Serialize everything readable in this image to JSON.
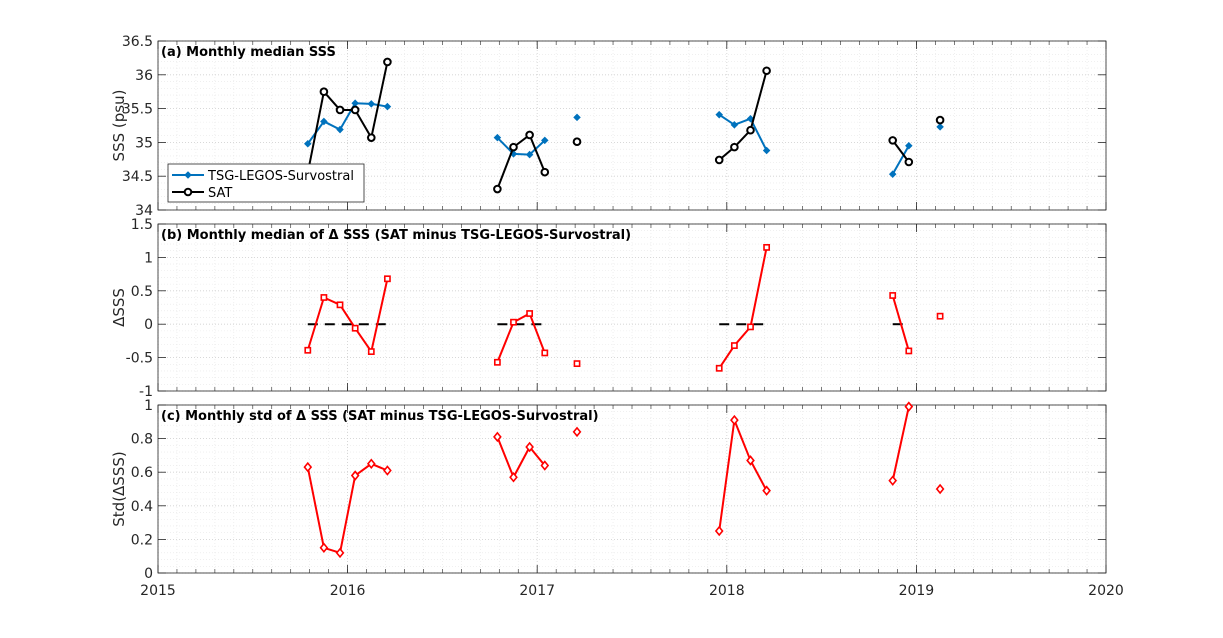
{
  "figure": {
    "x_ticks": [
      2015,
      2016,
      2017,
      2018,
      2019,
      2020
    ],
    "x_tick_labels": [
      "2015",
      "2016",
      "2017",
      "2018",
      "2019",
      "2020"
    ]
  },
  "chart_data": [
    {
      "type": "line",
      "title": "(a) Monthly median SSS",
      "ylabel": "SSS (psu)",
      "xlim": [
        2015,
        2020
      ],
      "ylim": [
        34,
        36.5
      ],
      "yticks": [
        34,
        34.5,
        35,
        35.5,
        36,
        36.5
      ],
      "ytick_labels": [
        "34",
        "34.5",
        "35",
        "35.5",
        "36",
        "36.5"
      ],
      "grid": true,
      "legend_location": "lower-left",
      "series": [
        {
          "name": "TSG-LEGOS-Survostral",
          "color": "#0072BD",
          "marker": "diamond-filled",
          "x": [
            2015.79,
            2015.875,
            2015.96,
            2016.04,
            2016.125,
            2016.21,
            null,
            2016.79,
            2016.875,
            2016.96,
            2017.04,
            null,
            2017.21,
            null,
            2017.96,
            2018.04,
            2018.125,
            2018.21,
            null,
            2018.875,
            2018.96,
            null,
            2019.125
          ],
          "y": [
            34.98,
            35.31,
            35.19,
            35.58,
            35.57,
            35.53,
            null,
            35.07,
            34.83,
            34.82,
            35.03,
            null,
            35.37,
            null,
            35.41,
            35.26,
            35.35,
            34.88,
            null,
            34.53,
            34.95,
            null,
            35.23
          ]
        },
        {
          "name": "SAT",
          "color": "#000000",
          "marker": "circle-open",
          "x": [
            2015.875,
            2015.96,
            2016.04,
            2016.125,
            2016.21,
            null,
            2016.79,
            2016.875,
            2016.96,
            2017.04,
            null,
            2017.21,
            null,
            2017.96,
            2018.04,
            2018.125,
            2018.21,
            null,
            2018.875,
            2018.96,
            null,
            2019.125
          ],
          "y": [
            35.75,
            35.48,
            35.48,
            35.07,
            36.19,
            null,
            34.31,
            34.93,
            35.11,
            34.56,
            null,
            35.01,
            null,
            34.74,
            34.93,
            35.18,
            36.06,
            null,
            35.03,
            34.71,
            null,
            35.33
          ]
        }
      ],
      "extra_segment": {
        "series": "SAT",
        "x": [
          2015.79,
          2015.875
        ],
        "y": [
          34.55,
          35.75
        ]
      }
    },
    {
      "type": "line",
      "title": "(b) Monthly median of Δ SSS (SAT minus TSG-LEGOS-Survostral)",
      "ylabel": "ΔSSS",
      "xlim": [
        2015,
        2020
      ],
      "ylim": [
        -1,
        1.5
      ],
      "yticks": [
        -1,
        -0.5,
        0,
        0.5,
        1,
        1.5
      ],
      "ytick_labels": [
        "-1",
        "-0.5",
        "0",
        "0.5",
        "1",
        "1.5"
      ],
      "grid": true,
      "series": [
        {
          "name": "",
          "color": "#FF0000",
          "marker": "square-open",
          "x": [
            2015.79,
            2015.875,
            2015.96,
            2016.04,
            2016.125,
            2016.21,
            null,
            2016.79,
            2016.875,
            2016.96,
            2017.04,
            null,
            2017.21,
            null,
            2017.96,
            2018.04,
            2018.125,
            2018.21,
            null,
            2018.875,
            2018.96,
            null,
            2019.125
          ],
          "y": [
            -0.39,
            0.4,
            0.29,
            -0.06,
            -0.41,
            0.68,
            null,
            -0.57,
            0.03,
            0.16,
            -0.43,
            null,
            -0.59,
            null,
            -0.66,
            -0.32,
            -0.04,
            1.15,
            null,
            0.43,
            -0.4,
            null,
            0.12
          ]
        }
      ],
      "zero_lines": [
        {
          "x": [
            2015.79,
            2016.21
          ],
          "y": 0
        },
        {
          "x": [
            2016.79,
            2017.04
          ],
          "y": 0
        },
        {
          "x": [
            2017.96,
            2018.21
          ],
          "y": 0
        },
        {
          "x": [
            2018.875,
            2018.96
          ],
          "y": 0
        }
      ]
    },
    {
      "type": "line",
      "title": "(c) Monthly std of Δ SSS (SAT minus TSG-LEGOS-Survostral)",
      "ylabel": "Std(ΔSSS)",
      "xlim": [
        2015,
        2020
      ],
      "ylim": [
        0,
        1
      ],
      "yticks": [
        0,
        0.2,
        0.4,
        0.6,
        0.8,
        1
      ],
      "ytick_labels": [
        "0",
        "0.2",
        "0.4",
        "0.6",
        "0.8",
        "1"
      ],
      "grid": true,
      "series": [
        {
          "name": "",
          "color": "#FF0000",
          "marker": "diamond-open",
          "x": [
            2015.79,
            2015.875,
            2015.96,
            2016.04,
            2016.125,
            2016.21,
            null,
            2016.79,
            2016.875,
            2016.96,
            2017.04,
            null,
            2017.21,
            null,
            2017.96,
            2018.04,
            2018.125,
            2018.21,
            null,
            2018.875,
            2018.96,
            null,
            2019.125
          ],
          "y": [
            0.63,
            0.15,
            0.12,
            0.58,
            0.65,
            0.61,
            null,
            0.81,
            0.57,
            0.75,
            0.64,
            null,
            0.84,
            null,
            0.25,
            0.91,
            0.67,
            0.49,
            null,
            0.55,
            0.99,
            null,
            0.5
          ]
        }
      ]
    }
  ]
}
